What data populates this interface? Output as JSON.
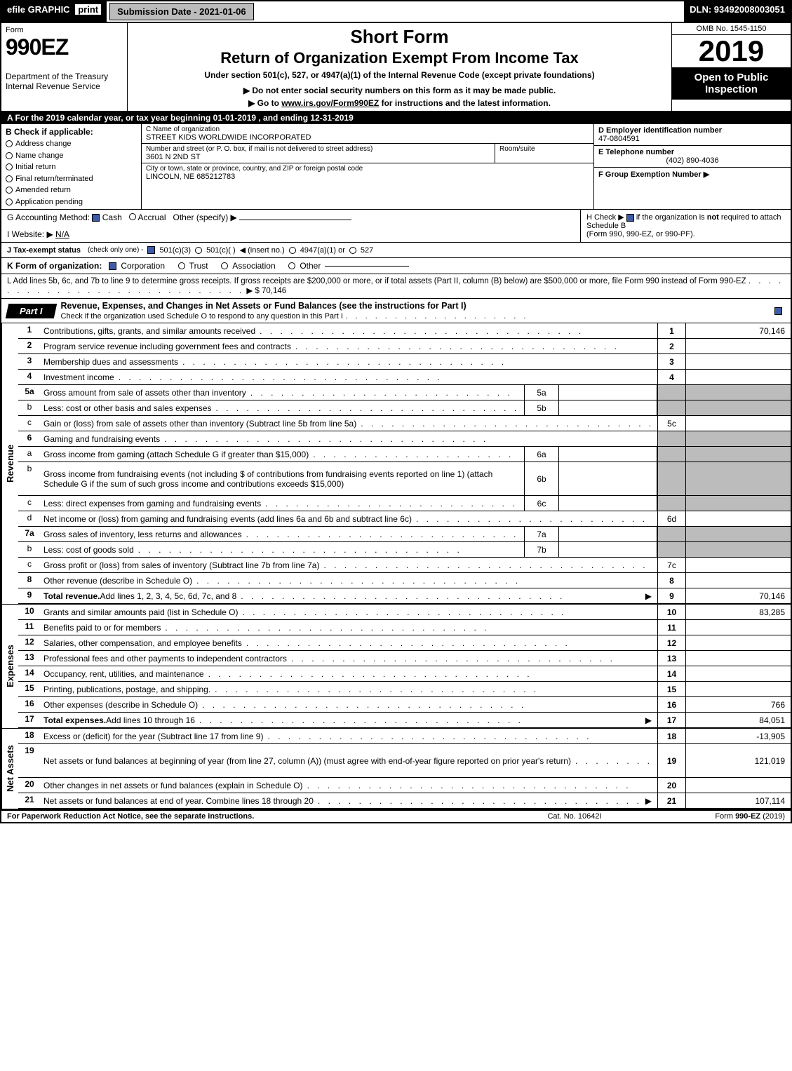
{
  "topbar": {
    "efile": "efile GRAPHIC",
    "print": "print",
    "submission": "Submission Date - 2021-01-06",
    "dln": "DLN: 93492008003051"
  },
  "header": {
    "form_label": "Form",
    "form_no": "990EZ",
    "dept": "Department of the Treasury",
    "irs": "Internal Revenue Service",
    "title1": "Short Form",
    "title2": "Return of Organization Exempt From Income Tax",
    "subtitle": "Under section 501(c), 527, or 4947(a)(1) of the Internal Revenue Code (except private foundations)",
    "warn": "▶ Do not enter social security numbers on this form as it may be made public.",
    "link_pre": "▶ Go to ",
    "link_url": "www.irs.gov/Form990EZ",
    "link_post": " for instructions and the latest information.",
    "omb": "OMB No. 1545-1150",
    "year": "2019",
    "open": "Open to Public Inspection"
  },
  "taxyear": "A  For the 2019 calendar year, or tax year beginning 01-01-2019 , and ending 12-31-2019",
  "boxB": {
    "header": "B  Check if applicable:",
    "opts": [
      "Address change",
      "Name change",
      "Initial return",
      "Final return/terminated",
      "Amended return",
      "Application pending"
    ]
  },
  "boxC": {
    "c_label": "C Name of organization",
    "c_name": "STREET KIDS WORLDWIDE INCORPORATED",
    "addr_label": "Number and street (or P. O. box, if mail is not delivered to street address)",
    "addr": "3601 N 2ND ST",
    "room_label": "Room/suite",
    "city_label": "City or town, state or province, country, and ZIP or foreign postal code",
    "city": "LINCOLN, NE  685212783"
  },
  "boxD": {
    "d_label": "D Employer identification number",
    "ein": "47-0804591",
    "e_label": "E Telephone number",
    "phone": "(402) 890-4036",
    "f_label": "F Group Exemption Number  ▶"
  },
  "lineG": {
    "label": "G Accounting Method:",
    "cash": "Cash",
    "accrual": "Accrual",
    "other": "Other (specify) ▶"
  },
  "lineH": {
    "label": "H  Check ▶",
    "text1": "if the organization is ",
    "not": "not",
    "text2": " required to attach Schedule B",
    "text3": "(Form 990, 990-EZ, or 990-PF)."
  },
  "lineI": {
    "label": "I Website: ▶",
    "value": "N/A"
  },
  "lineJ": {
    "label": "J Tax-exempt status",
    "small": "(check only one) - ",
    "o1": "501(c)(3)",
    "o2": "501(c)(  )",
    "ins": "◀ (insert no.)",
    "o3": "4947(a)(1) or",
    "o4": "527"
  },
  "lineK": {
    "label": "K Form of organization:",
    "opts": [
      "Corporation",
      "Trust",
      "Association",
      "Other"
    ]
  },
  "lineL": {
    "text": "L Add lines 5b, 6c, and 7b to line 9 to determine gross receipts. If gross receipts are $200,000 or more, or if total assets (Part II, column (B) below) are $500,000 or more, file Form 990 instead of Form 990-EZ",
    "arrow": "▶",
    "amount": "$ 70,146"
  },
  "part1": {
    "tab": "Part I",
    "title": "Revenue, Expenses, and Changes in Net Assets or Fund Balances (see the instructions for Part I)",
    "check_line": "Check if the organization used Schedule O to respond to any question in this Part I"
  },
  "sections": {
    "revenue": "Revenue",
    "expenses": "Expenses",
    "netassets": "Net Assets"
  },
  "rows": [
    {
      "n": "1",
      "b": true,
      "desc": "Contributions, gifts, grants, and similar amounts received",
      "ln": "1",
      "lnb": true,
      "amt": "70,146"
    },
    {
      "n": "2",
      "b": true,
      "desc": "Program service revenue including government fees and contracts",
      "ln": "2",
      "lnb": true,
      "amt": ""
    },
    {
      "n": "3",
      "b": true,
      "desc": "Membership dues and assessments",
      "ln": "3",
      "lnb": true,
      "amt": ""
    },
    {
      "n": "4",
      "b": true,
      "desc": "Investment income",
      "ln": "4",
      "lnb": true,
      "amt": ""
    },
    {
      "n": "5a",
      "b": true,
      "desc": "Gross amount from sale of assets other than inventory",
      "sub": "5a",
      "shade": true
    },
    {
      "n": "b",
      "desc": "Less: cost or other basis and sales expenses",
      "sub": "5b",
      "shade": true
    },
    {
      "n": "c",
      "desc": "Gain or (loss) from sale of assets other than inventory (Subtract line 5b from line 5a)",
      "ln": "5c",
      "amt": ""
    },
    {
      "n": "6",
      "b": true,
      "desc": "Gaming and fundraising events",
      "shade_full": true
    },
    {
      "n": "a",
      "desc": "Gross income from gaming (attach Schedule G if greater than $15,000)",
      "sub": "6a",
      "shade": true
    },
    {
      "n": "b",
      "desc": "Gross income from fundraising events (not including $                       of contributions from fundraising events reported on line 1) (attach Schedule G if the sum of such gross income and contributions exceeds $15,000)",
      "sub": "6b",
      "shade": true,
      "tall": true
    },
    {
      "n": "c",
      "desc": "Less: direct expenses from gaming and fundraising events",
      "sub": "6c",
      "shade": true
    },
    {
      "n": "d",
      "desc": "Net income or (loss) from gaming and fundraising events (add lines 6a and 6b and subtract line 6c)",
      "ln": "6d",
      "amt": ""
    },
    {
      "n": "7a",
      "b": true,
      "desc": "Gross sales of inventory, less returns and allowances",
      "sub": "7a",
      "shade": true
    },
    {
      "n": "b",
      "desc": "Less: cost of goods sold",
      "sub": "7b",
      "shade": true
    },
    {
      "n": "c",
      "desc": "Gross profit or (loss) from sales of inventory (Subtract line 7b from line 7a)",
      "ln": "7c",
      "amt": ""
    },
    {
      "n": "8",
      "b": true,
      "desc": "Other revenue (describe in Schedule O)",
      "ln": "8",
      "lnb": true,
      "amt": ""
    },
    {
      "n": "9",
      "b": true,
      "desc": "Total revenue. Add lines 1, 2, 3, 4, 5c, 6d, 7c, and 8",
      "ln": "9",
      "lnb": true,
      "amt": "70,146",
      "bold_label": "Total revenue.",
      "arrow": true
    }
  ],
  "exp_rows": [
    {
      "n": "10",
      "b": true,
      "desc": "Grants and similar amounts paid (list in Schedule O)",
      "ln": "10",
      "lnb": true,
      "amt": "83,285"
    },
    {
      "n": "11",
      "b": true,
      "desc": "Benefits paid to or for members",
      "ln": "11",
      "lnb": true,
      "amt": ""
    },
    {
      "n": "12",
      "b": true,
      "desc": "Salaries, other compensation, and employee benefits",
      "ln": "12",
      "lnb": true,
      "amt": ""
    },
    {
      "n": "13",
      "b": true,
      "desc": "Professional fees and other payments to independent contractors",
      "ln": "13",
      "lnb": true,
      "amt": ""
    },
    {
      "n": "14",
      "b": true,
      "desc": "Occupancy, rent, utilities, and maintenance",
      "ln": "14",
      "lnb": true,
      "amt": ""
    },
    {
      "n": "15",
      "b": true,
      "desc": "Printing, publications, postage, and shipping.",
      "ln": "15",
      "lnb": true,
      "amt": ""
    },
    {
      "n": "16",
      "b": true,
      "desc": "Other expenses (describe in Schedule O)",
      "ln": "16",
      "lnb": true,
      "amt": "766"
    },
    {
      "n": "17",
      "b": true,
      "bold_label": "Total expenses.",
      "desc": "Add lines 10 through 16",
      "ln": "17",
      "lnb": true,
      "amt": "84,051",
      "arrow": true
    }
  ],
  "na_rows": [
    {
      "n": "18",
      "b": true,
      "desc": "Excess or (deficit) for the year (Subtract line 17 from line 9)",
      "ln": "18",
      "lnb": true,
      "amt": "-13,905"
    },
    {
      "n": "19",
      "b": true,
      "desc": "Net assets or fund balances at beginning of year (from line 27, column (A)) (must agree with end-of-year figure reported on prior year's return)",
      "ln": "19",
      "lnb": true,
      "amt": "121,019",
      "tall": true,
      "shade_top": true
    },
    {
      "n": "20",
      "b": true,
      "desc": "Other changes in net assets or fund balances (explain in Schedule O)",
      "ln": "20",
      "lnb": true,
      "amt": ""
    },
    {
      "n": "21",
      "b": true,
      "desc": "Net assets or fund balances at end of year. Combine lines 18 through 20",
      "ln": "21",
      "lnb": true,
      "amt": "107,114",
      "arrow": true
    }
  ],
  "footer": {
    "left": "For Paperwork Reduction Act Notice, see the separate instructions.",
    "center": "Cat. No. 10642I",
    "right_pre": "Form ",
    "right_form": "990-EZ",
    "right_post": " (2019)"
  }
}
